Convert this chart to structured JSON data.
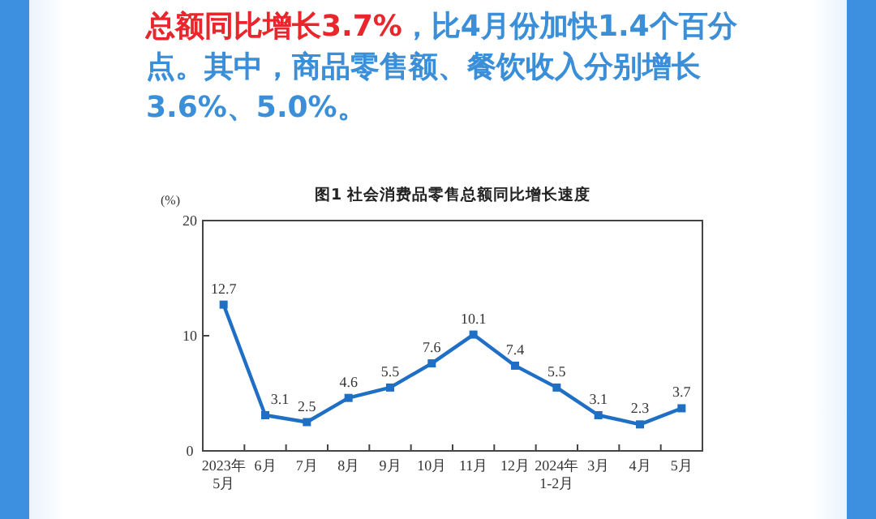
{
  "chart_data": {
    "type": "line",
    "title": "图1  社会消费品零售总额同比增长速度",
    "ylabel": "(%)",
    "annotations": [
      "总额同比增长3.7%",
      "，比4月份加快1.4个百分点。其中，商品零售额、餐饮收入分别增长3.6%、5.0%。"
    ],
    "categories": [
      "2023年\n5月",
      "6月",
      "7月",
      "8月",
      "9月",
      "10月",
      "11月",
      "12月",
      "2024年\n1-2月",
      "3月",
      "4月",
      "5月"
    ],
    "series": [
      {
        "color": "#1f6fc5",
        "values": [
          12.7,
          3.1,
          2.5,
          4.6,
          5.5,
          7.6,
          10.1,
          7.4,
          5.5,
          3.1,
          2.3,
          3.7
        ]
      }
    ],
    "ylim": [
      0,
      20
    ],
    "yticks": [
      0,
      10,
      20
    ],
    "marker": "square",
    "line_style": "solid",
    "data_labels": true
  }
}
